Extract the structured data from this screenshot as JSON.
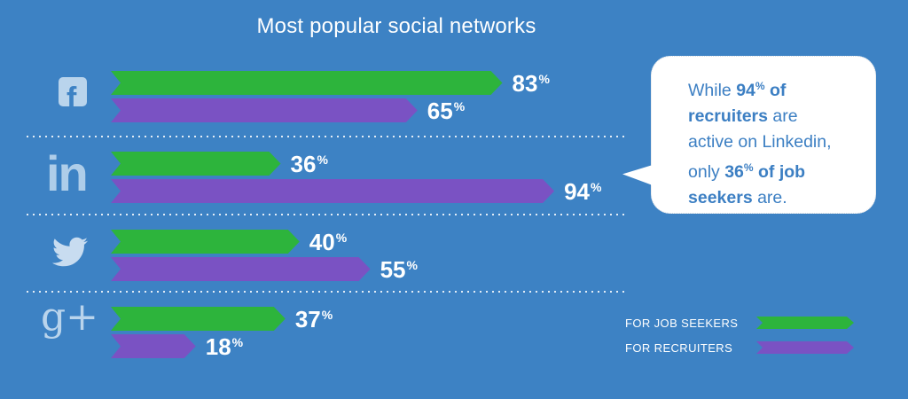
{
  "chart_data": {
    "type": "bar",
    "orientation": "horizontal",
    "title": "Most popular social networks",
    "unit": "%",
    "categories": [
      "Facebook",
      "LinkedIn",
      "Twitter",
      "Google+"
    ],
    "series": [
      {
        "name": "FOR JOB SEEKERS",
        "color": "#2db43c",
        "values": [
          83,
          36,
          40,
          37
        ]
      },
      {
        "name": "FOR RECRUITERS",
        "color": "#7a52c3",
        "values": [
          65,
          94,
          55,
          18
        ]
      }
    ],
    "xlim": [
      0,
      100
    ],
    "legend_position": "bottom-right",
    "background_color": "#3d82c4",
    "grid": "dotted row separators"
  },
  "icons": {
    "facebook_glyph": "f",
    "linkedin_glyph": "in",
    "googleplus_glyph": "g+",
    "twitter_glyph": "twitter-bird"
  },
  "callout": {
    "line1_normal": "While ",
    "line1_bold_num": "94",
    "line1_sup": "%",
    "line1_bold_rest": " of",
    "line2_bold": "recruiters",
    "line2_normal": " are",
    "line3_normal": "active on Linkedin,",
    "line4_normal": "only ",
    "line4_bold_num": "36",
    "line4_sup": "%",
    "line4_bold_rest": " of job",
    "line5_bold": "seekers",
    "line5_normal": " are."
  }
}
